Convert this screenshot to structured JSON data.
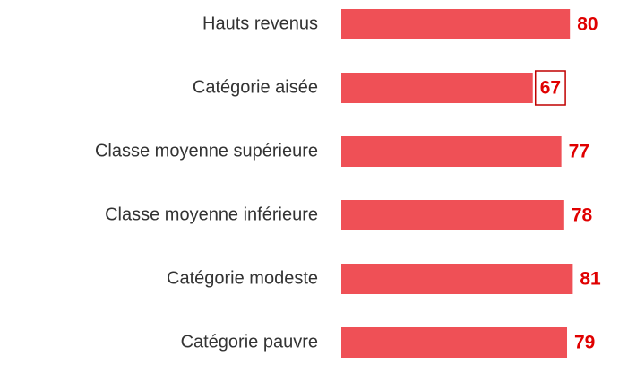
{
  "chart_data": {
    "type": "bar",
    "orientation": "horizontal",
    "categories": [
      "Hauts revenus",
      "Catégorie aisée",
      "Classe moyenne supérieure",
      "Classe moyenne inférieure",
      "Catégorie modeste",
      "Catégorie pauvre"
    ],
    "values": [
      80,
      67,
      77,
      78,
      81,
      79
    ],
    "color": "#ef5056",
    "label_color": "#e00000",
    "highlighted": [
      1
    ]
  }
}
